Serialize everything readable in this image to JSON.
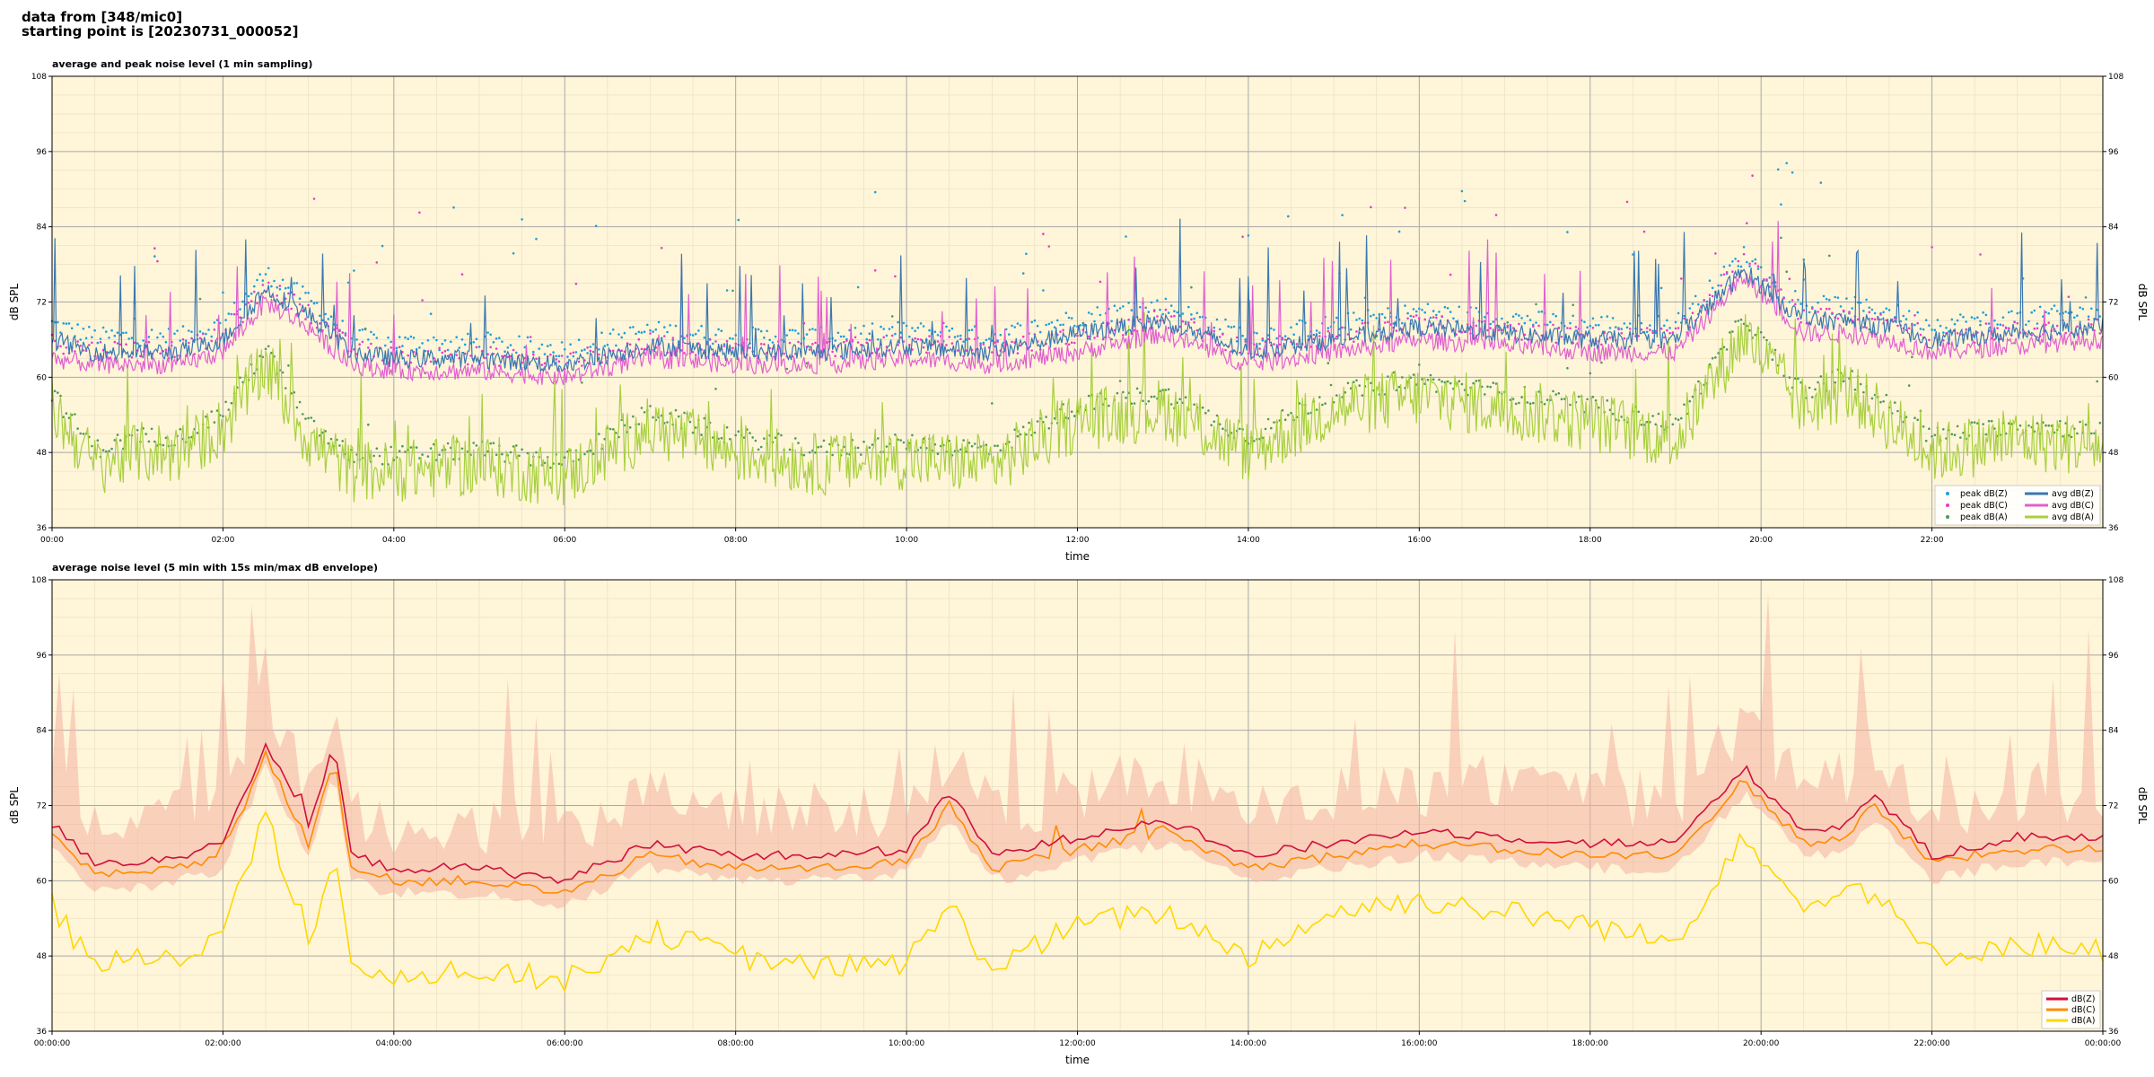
{
  "header": {
    "line1": "data from [348/mic0]",
    "line2": "starting point is [20230731_000052]"
  },
  "colors": {
    "plot_bg": "#fff5d9",
    "peak_z": "#1f9fd8",
    "peak_c": "#e83cc8",
    "peak_a": "#4a9a5a",
    "avg_z": "#3a78b0",
    "avg_c": "#e060d0",
    "avg_a": "#a8d040",
    "z": "#d0103a",
    "c": "#ff8c00",
    "a": "#ffd700",
    "envelope": "#f4b0a0"
  },
  "chart_data": [
    {
      "type": "line",
      "title": "average and peak noise level (1 min sampling)",
      "xlabel": "time",
      "ylabel": "dB SPL",
      "ylim": [
        36,
        108
      ],
      "xlim_hours": [
        0,
        24
      ],
      "yticks": [
        "36",
        "48",
        "60",
        "72",
        "84",
        "96",
        "108"
      ],
      "xticks": [
        "00:00",
        "02:00",
        "04:00",
        "06:00",
        "08:00",
        "10:00",
        "12:00",
        "14:00",
        "16:00",
        "18:00",
        "20:00",
        "22:00"
      ],
      "grid": true,
      "legend_position": "lower-right",
      "legend": [
        "peak dB(Z)",
        "peak dB(C)",
        "peak dB(A)",
        "avg dB(Z)",
        "avg dB(C)",
        "avg dB(A)"
      ],
      "series": [
        {
          "name": "avg dB(Z)",
          "x": [
            0,
            0.5,
            1,
            1.5,
            2,
            2.5,
            3,
            3.5,
            4,
            5,
            6,
            7,
            8,
            9,
            10,
            11,
            12,
            13,
            14,
            15,
            16,
            17,
            18,
            19,
            19.8,
            20.5,
            21,
            21.5,
            22,
            23,
            24
          ],
          "y": [
            66,
            64,
            64,
            64,
            66,
            74,
            70,
            64,
            63,
            63,
            62,
            65,
            64,
            64,
            65,
            64,
            67,
            69,
            64,
            66,
            68,
            67,
            66,
            66,
            77,
            69,
            69,
            68,
            66,
            67,
            68
          ]
        },
        {
          "name": "avg dB(C)",
          "x": [
            0,
            0.5,
            1,
            1.5,
            2,
            2.5,
            3,
            3.5,
            4,
            5,
            6,
            7,
            8,
            9,
            10,
            11,
            12,
            13,
            14,
            15,
            16,
            17,
            18,
            19,
            19.8,
            20.5,
            21,
            21.5,
            22,
            23,
            24
          ],
          "y": [
            63,
            62,
            62,
            62,
            64,
            72,
            68,
            62,
            61,
            61,
            60,
            63,
            62,
            62,
            63,
            62,
            64,
            67,
            62,
            64,
            66,
            65,
            64,
            64,
            76,
            67,
            67,
            66,
            64,
            65,
            66
          ]
        },
        {
          "name": "avg dB(A)",
          "x": [
            0,
            0.5,
            1,
            1.5,
            2,
            2.5,
            3,
            3.5,
            4,
            5,
            6,
            7,
            8,
            9,
            10,
            11,
            12,
            13,
            14,
            15,
            16,
            17,
            18,
            19,
            19.8,
            20.5,
            21,
            21.5,
            22,
            23,
            24
          ],
          "y": [
            55,
            46,
            48,
            48,
            52,
            62,
            50,
            45,
            45,
            46,
            44,
            52,
            48,
            46,
            47,
            46,
            53,
            55,
            48,
            55,
            57,
            55,
            53,
            50,
            67,
            55,
            58,
            53,
            48,
            50,
            49
          ]
        }
      ]
    },
    {
      "type": "line",
      "title": "average noise level (5 min with 15s min/max dB envelope)",
      "xlabel": "time",
      "ylabel": "dB SPL",
      "ylim": [
        36,
        108
      ],
      "xlim_hours": [
        0,
        24
      ],
      "yticks": [
        "36",
        "48",
        "60",
        "72",
        "84",
        "96",
        "108"
      ],
      "xticks": [
        "00:00:00",
        "02:00:00",
        "04:00:00",
        "06:00:00",
        "08:00:00",
        "10:00:00",
        "12:00:00",
        "14:00:00",
        "16:00:00",
        "18:00:00",
        "20:00:00",
        "22:00:00",
        "00:00:00"
      ],
      "grid": true,
      "legend_position": "lower-right",
      "legend": [
        "dB(Z)",
        "dB(C)",
        "dB(A)"
      ],
      "series": [
        {
          "name": "dB(Z)",
          "x": [
            0,
            0.5,
            1,
            1.5,
            2,
            2.5,
            3,
            3.3,
            3.5,
            4,
            5,
            6,
            7,
            8,
            9,
            10,
            10.5,
            11,
            12,
            13,
            14,
            15,
            16,
            17,
            18,
            19,
            19.8,
            20.5,
            21,
            21.3,
            22,
            23,
            24
          ],
          "y": [
            69,
            63,
            63,
            64,
            66,
            82,
            68,
            82,
            64,
            62,
            62,
            60,
            66,
            64,
            64,
            65,
            74,
            64,
            67,
            70,
            64,
            66,
            68,
            67,
            66,
            66,
            78,
            68,
            69,
            74,
            64,
            67,
            67
          ]
        },
        {
          "name": "dB(C)",
          "x": [
            0,
            0.5,
            1,
            1.5,
            2,
            2.5,
            3,
            3.3,
            3.5,
            4,
            5,
            6,
            7,
            8,
            9,
            10,
            10.5,
            11,
            12,
            13,
            14,
            15,
            16,
            17,
            18,
            19,
            19.8,
            20.5,
            21,
            21.3,
            22,
            23,
            24
          ],
          "y": [
            67,
            61,
            61,
            62,
            64,
            80,
            66,
            80,
            62,
            60,
            60,
            58,
            64,
            62,
            62,
            63,
            72,
            62,
            65,
            68,
            62,
            64,
            66,
            65,
            64,
            64,
            76,
            66,
            67,
            72,
            63,
            65,
            65
          ]
        },
        {
          "name": "dB(A)",
          "x": [
            0,
            0.5,
            1,
            1.5,
            2,
            2.5,
            3,
            3.3,
            3.5,
            4,
            5,
            6,
            7,
            8,
            9,
            10,
            10.5,
            11,
            12,
            13,
            14,
            15,
            16,
            17,
            18,
            19,
            19.8,
            20.5,
            21,
            21.3,
            22,
            23,
            24
          ],
          "y": [
            56,
            46,
            48,
            48,
            52,
            70,
            50,
            65,
            45,
            45,
            46,
            44,
            52,
            48,
            46,
            47,
            56,
            46,
            53,
            55,
            48,
            55,
            57,
            55,
            53,
            50,
            68,
            55,
            60,
            58,
            48,
            50,
            49
          ]
        }
      ]
    }
  ]
}
